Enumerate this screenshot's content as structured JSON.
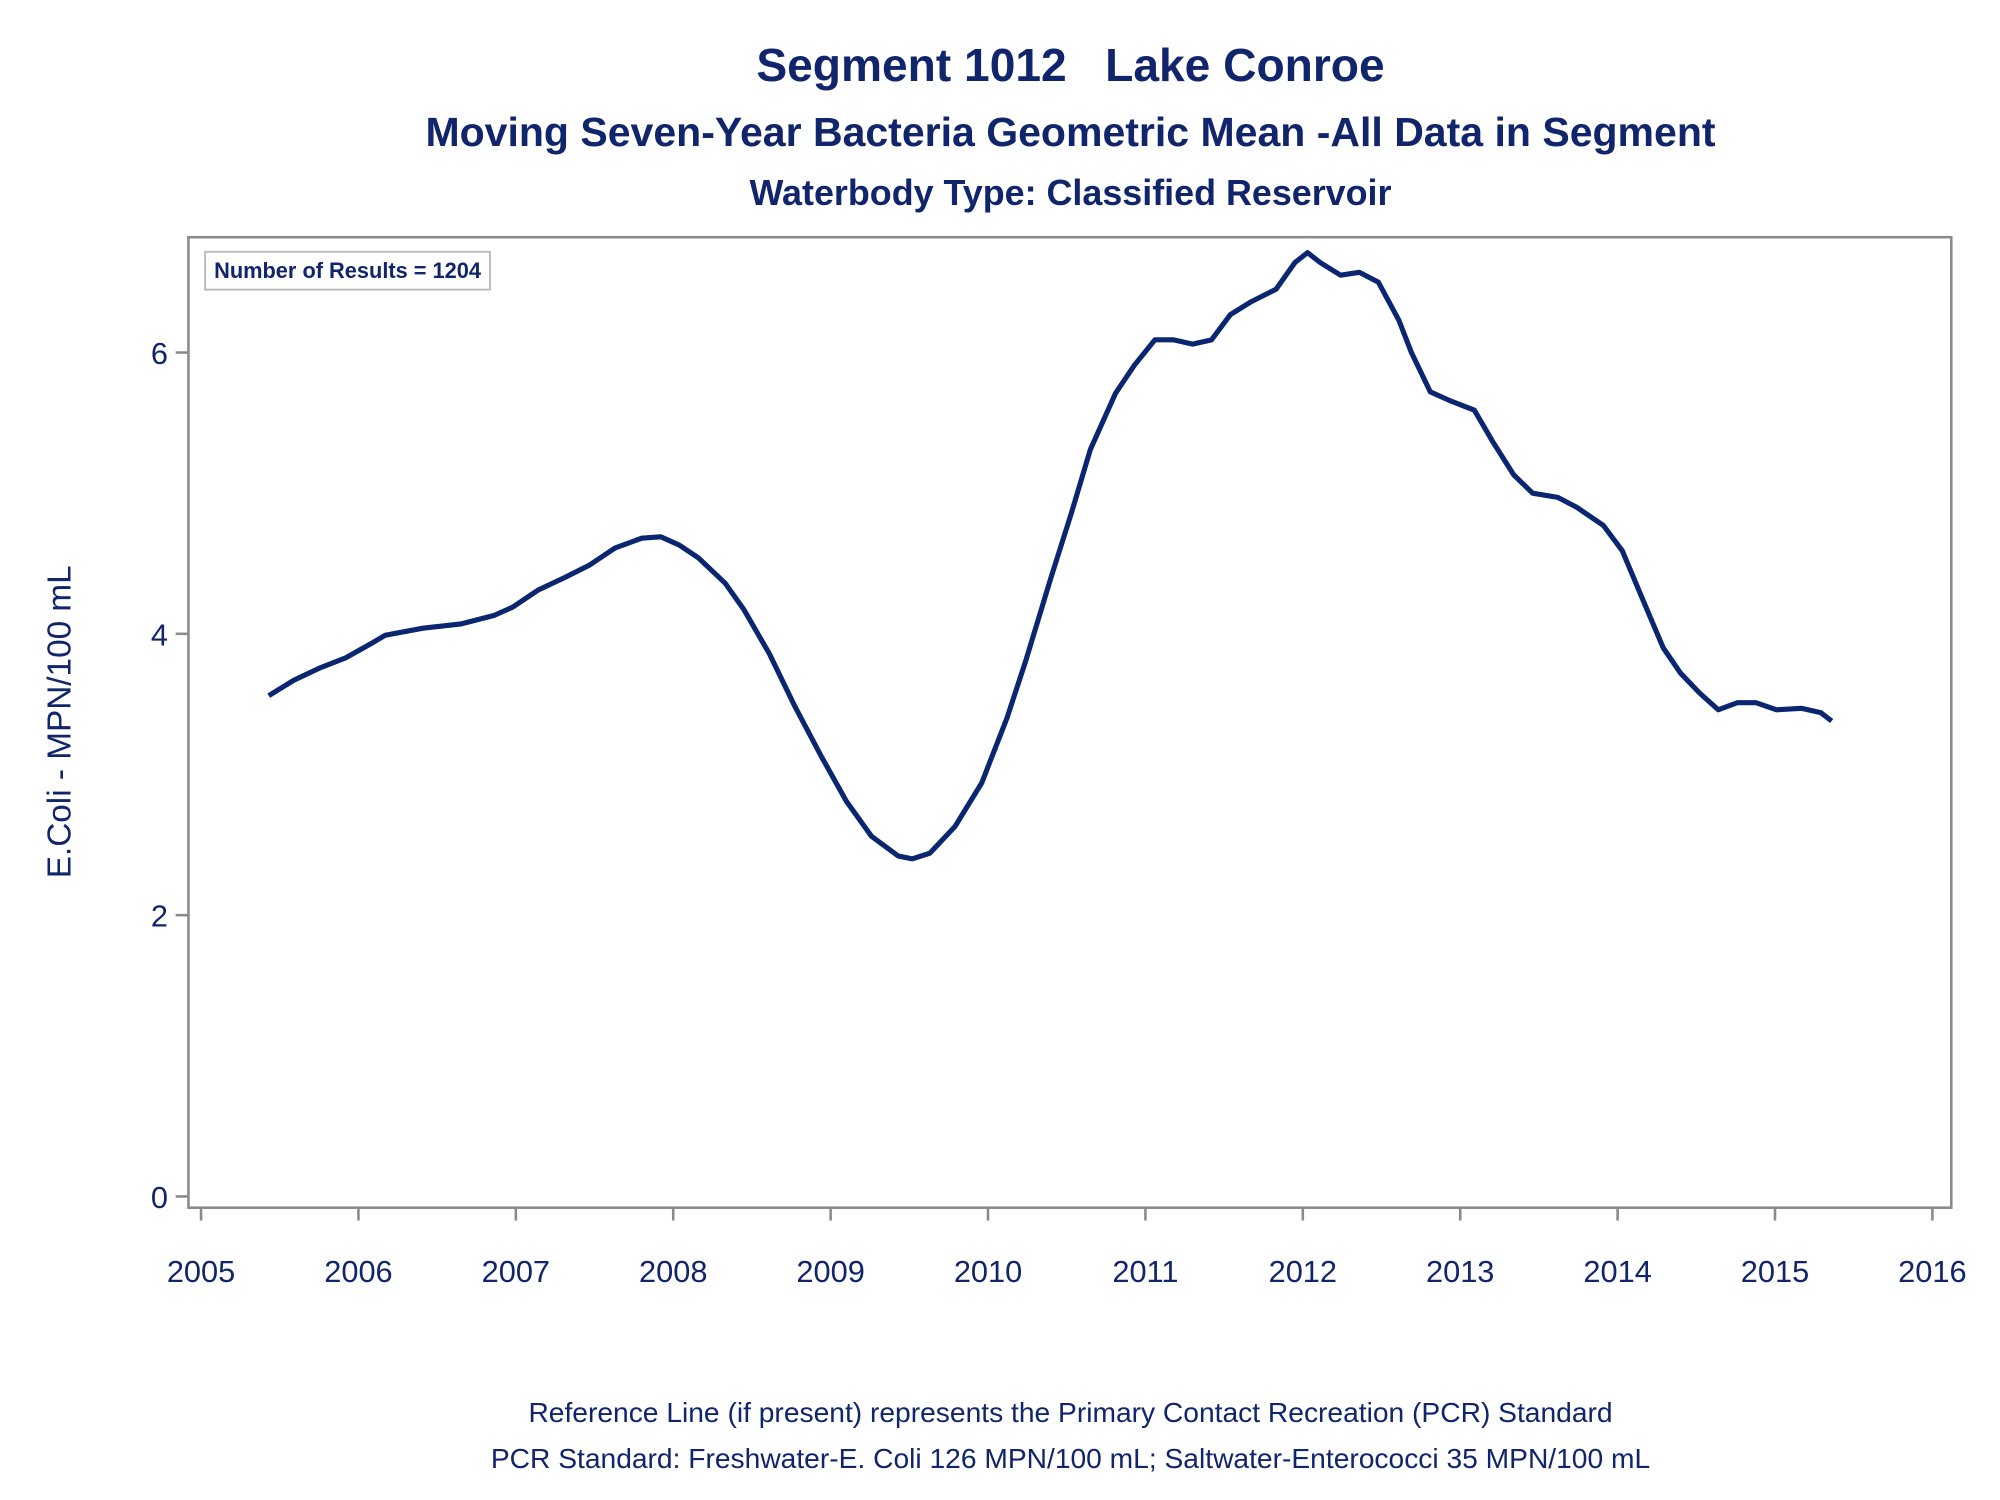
{
  "chart_data": {
    "type": "line",
    "title": "Segment 1012   Lake Conroe",
    "subtitles": [
      "Moving Seven-Year Bacteria Geometric Mean -All Data in Segment",
      "Waterbody Type: Classified Reservoir"
    ],
    "y_label": "E.Coli - MPN/100 mL",
    "annotation": "Number of Results = 1204",
    "footnotes": [
      "Reference Line (if present) represents the Primary Contact Recreation (PCR) Standard",
      "PCR Standard: Freshwater-E. Coli 126 MPN/100 mL; Saltwater-Enterococci 35 MPN/100 mL"
    ],
    "xlim": [
      2004.92,
      2016.12
    ],
    "xticks": [
      2005,
      2006,
      2007,
      2008,
      2009,
      2010,
      2011,
      2012,
      2013,
      2014,
      2015,
      2016
    ],
    "ylim": [
      -0.08,
      6.82
    ],
    "yticks": [
      0,
      2,
      4,
      6
    ],
    "grid": false,
    "series": [
      {
        "name": "Geometric Mean",
        "color": "#0b2670",
        "x": [
          2005.43,
          2005.59,
          2005.76,
          2005.92,
          2006.08,
          2006.17,
          2006.41,
          2006.65,
          2006.86,
          2006.98,
          2007.14,
          2007.31,
          2007.47,
          2007.63,
          2007.8,
          2007.92,
          2008.04,
          2008.16,
          2008.33,
          2008.45,
          2008.61,
          2008.77,
          2008.94,
          2009.1,
          2009.26,
          2009.43,
          2009.52,
          2009.63,
          2009.79,
          2009.96,
          2010.12,
          2010.24,
          2010.4,
          2010.53,
          2010.65,
          2010.81,
          2010.93,
          2011.06,
          2011.18,
          2011.3,
          2011.42,
          2011.54,
          2011.67,
          2011.83,
          2011.95,
          2012.03,
          2012.11,
          2012.24,
          2012.36,
          2012.48,
          2012.61,
          2012.69,
          2012.81,
          2012.93,
          2013.09,
          2013.21,
          2013.34,
          2013.46,
          2013.62,
          2013.74,
          2013.91,
          2014.03,
          2014.15,
          2014.29,
          2014.4,
          2014.52,
          2014.64,
          2014.76,
          2014.88,
          2015.01,
          2015.17,
          2015.29,
          2015.36
        ],
        "values": [
          3.56,
          3.67,
          3.76,
          3.83,
          3.93,
          3.99,
          4.04,
          4.07,
          4.13,
          4.19,
          4.31,
          4.4,
          4.49,
          4.61,
          4.68,
          4.69,
          4.63,
          4.54,
          4.36,
          4.17,
          3.86,
          3.49,
          3.13,
          2.81,
          2.56,
          2.42,
          2.4,
          2.44,
          2.63,
          2.94,
          3.4,
          3.81,
          4.4,
          4.86,
          5.31,
          5.71,
          5.91,
          6.09,
          6.09,
          6.06,
          6.09,
          6.27,
          6.36,
          6.45,
          6.64,
          6.71,
          6.64,
          6.55,
          6.57,
          6.5,
          6.23,
          6.0,
          5.72,
          5.66,
          5.59,
          5.36,
          5.13,
          5.0,
          4.97,
          4.9,
          4.77,
          4.59,
          4.27,
          3.9,
          3.72,
          3.58,
          3.46,
          3.51,
          3.51,
          3.46,
          3.47,
          3.44,
          3.38
        ]
      }
    ]
  }
}
